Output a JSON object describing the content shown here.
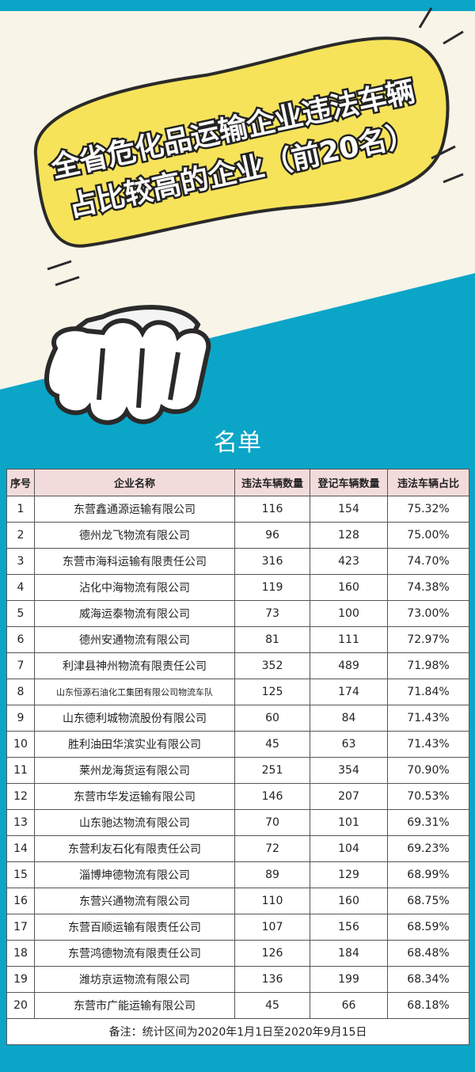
{
  "header": {
    "title_lines": [
      "全省危化品运输企业违法车辆",
      "占比较高的企业（前20名）"
    ]
  },
  "section_title": "名单",
  "table": {
    "columns": [
      "序号",
      "企业名称",
      "违法车辆数量",
      "登记车辆数量",
      "违法车辆占比"
    ],
    "rows": [
      [
        "1",
        "东营鑫通源运输有限公司",
        "116",
        "154",
        "75.32%"
      ],
      [
        "2",
        "德州龙飞物流有限公司",
        "96",
        "128",
        "75.00%"
      ],
      [
        "3",
        "东营市海科运输有限责任公司",
        "316",
        "423",
        "74.70%"
      ],
      [
        "4",
        "沾化中海物流有限公司",
        "119",
        "160",
        "74.38%"
      ],
      [
        "5",
        "威海运泰物流有限公司",
        "73",
        "100",
        "73.00%"
      ],
      [
        "6",
        "德州安通物流有限公司",
        "81",
        "111",
        "72.97%"
      ],
      [
        "7",
        "利津县神州物流有限责任公司",
        "352",
        "489",
        "71.98%"
      ],
      [
        "8",
        "山东恒源石油化工集团有限公司物流车队",
        "125",
        "174",
        "71.84%"
      ],
      [
        "9",
        "山东德利城物流股份有限公司",
        "60",
        "84",
        "71.43%"
      ],
      [
        "10",
        "胜利油田华滨实业有限公司",
        "45",
        "63",
        "71.43%"
      ],
      [
        "11",
        "莱州龙海货运有限公司",
        "251",
        "354",
        "70.90%"
      ],
      [
        "12",
        "东营市华发运输有限公司",
        "146",
        "207",
        "70.53%"
      ],
      [
        "13",
        "山东驰达物流有限公司",
        "70",
        "101",
        "69.31%"
      ],
      [
        "14",
        "东营利友石化有限责任公司",
        "72",
        "104",
        "69.23%"
      ],
      [
        "15",
        "淄博坤德物流有限公司",
        "89",
        "129",
        "68.99%"
      ],
      [
        "16",
        "东营兴通物流有限公司",
        "110",
        "160",
        "68.75%"
      ],
      [
        "17",
        "东营百顺运输有限责任公司",
        "107",
        "156",
        "68.59%"
      ],
      [
        "18",
        "东营鸿德物流有限责任公司",
        "126",
        "184",
        "68.48%"
      ],
      [
        "19",
        "潍坊京运物流有限公司",
        "136",
        "199",
        "68.34%"
      ],
      [
        "20",
        "东营市广能运输有限公司",
        "45",
        "66",
        "68.18%"
      ]
    ],
    "note": "备注：统计区间为2020年1月1日至2020年9月15日"
  }
}
